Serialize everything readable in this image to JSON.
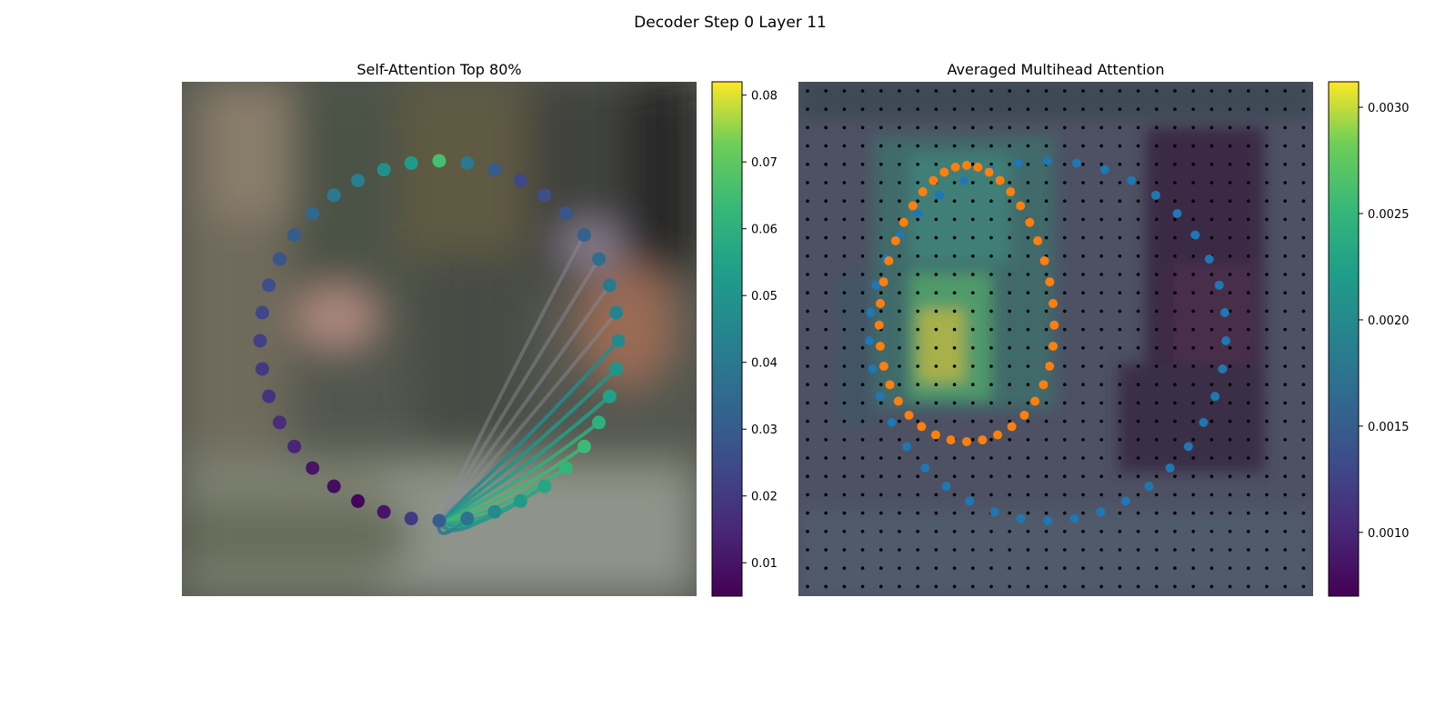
{
  "figure_title": "Decoder Step 0 Layer 11",
  "colors": {
    "orange": "#ff7f0e",
    "blue": "#1f77b4",
    "grid_dot": "#000000",
    "background_left": "#5a5f55",
    "background_right": "#4f5466"
  },
  "chart_data": [
    {
      "type": "scatter",
      "title": "Self-Attention Top 80%",
      "description_source": "circular contour of 40 keypoints over a blurred photo; lines from one query point to others colored by attention weight",
      "points_count": 40,
      "query_point_index": 20,
      "weights": [
        0.066,
        0.052,
        0.048,
        0.042,
        0.04,
        0.034,
        0.03,
        0.028,
        0.026,
        0.024,
        0.022,
        0.02,
        0.018,
        0.016,
        0.014,
        0.01,
        0.008,
        0.006,
        0.01,
        0.02,
        0.03,
        0.038,
        0.046,
        0.052,
        0.056,
        0.062,
        0.064,
        0.06,
        0.054,
        0.05,
        0.046,
        0.044,
        0.04,
        0.036,
        0.032,
        0.028,
        0.026,
        0.024,
        0.03,
        0.04
      ],
      "colorbar": {
        "ticks": [
          "0.01",
          "0.02",
          "0.03",
          "0.04",
          "0.05",
          "0.06",
          "0.07",
          "0.08"
        ],
        "range": [
          0.005,
          0.082
        ],
        "colormap": "viridis"
      }
    },
    {
      "type": "heatmap",
      "title": "Averaged Multihead Attention",
      "grid": "28x28 reference points",
      "series": [
        {
          "name": "",
          "color": "#ff7f0e",
          "points": 40
        },
        {
          "name": "",
          "color": "#1f77b4",
          "points": 40
        }
      ],
      "colorbar": {
        "ticks": [
          "0.0030",
          "0.0025",
          "0.0020",
          "0.0015",
          "0.0010"
        ],
        "range": [
          0.0007,
          0.00312
        ],
        "colormap": "viridis"
      }
    }
  ]
}
